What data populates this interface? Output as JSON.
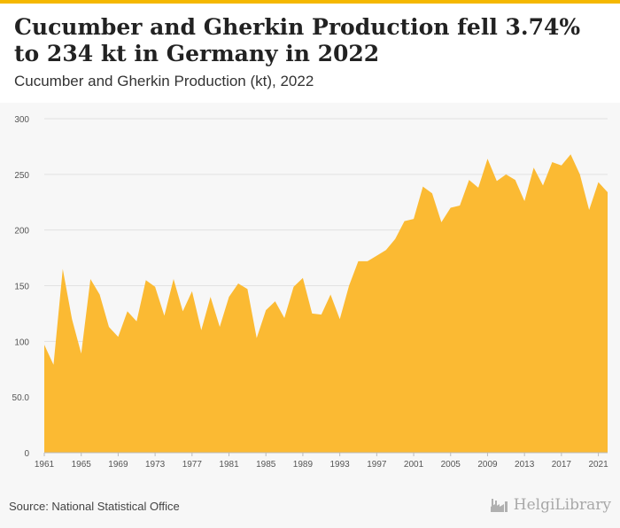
{
  "header": {
    "title": "Cucumber and Gherkin Production fell 3.74% to 234 kt in Germany in 2022",
    "subtitle": "Cucumber and Gherkin Production (kt), 2022"
  },
  "footer": {
    "source": "Source: National Statistical Office",
    "brand": "HelgiLibrary"
  },
  "colors": {
    "accent": "#f5b800",
    "area": "#fbba33"
  },
  "icons": {
    "brand": "factory-icon"
  },
  "chart_data": {
    "type": "area",
    "title": "Cucumber and Gherkin Production (kt), 2022",
    "xlabel": "",
    "ylabel": "",
    "ylim": [
      0,
      300
    ],
    "yticks": [
      0,
      50,
      100,
      150,
      200,
      250,
      300
    ],
    "ytick_labels": [
      "0",
      "50.0",
      "100",
      "150",
      "200",
      "250",
      "300"
    ],
    "xticks": [
      1961,
      1965,
      1969,
      1973,
      1977,
      1981,
      1985,
      1989,
      1993,
      1997,
      2001,
      2005,
      2009,
      2013,
      2017,
      2021
    ],
    "grid": true,
    "x": [
      1961,
      1962,
      1963,
      1964,
      1965,
      1966,
      1967,
      1968,
      1969,
      1970,
      1971,
      1972,
      1973,
      1974,
      1975,
      1976,
      1977,
      1978,
      1979,
      1980,
      1981,
      1982,
      1983,
      1984,
      1985,
      1986,
      1987,
      1988,
      1989,
      1990,
      1991,
      1992,
      1993,
      1994,
      1995,
      1996,
      1997,
      1998,
      1999,
      2000,
      2001,
      2002,
      2003,
      2004,
      2005,
      2006,
      2007,
      2008,
      2009,
      2010,
      2011,
      2012,
      2013,
      2014,
      2015,
      2016,
      2017,
      2018,
      2019,
      2020,
      2021,
      2022
    ],
    "values": [
      97,
      79,
      165,
      120,
      89,
      156,
      142,
      113,
      104,
      127,
      118,
      155,
      149,
      123,
      156,
      127,
      145,
      110,
      140,
      113,
      140,
      152,
      147,
      103,
      128,
      136,
      121,
      149,
      157,
      125,
      124,
      142,
      120,
      150,
      172,
      172,
      177,
      182,
      192,
      208,
      210,
      239,
      233,
      207,
      220,
      222,
      245,
      238,
      264,
      244,
      250,
      245,
      226,
      256,
      240,
      261,
      258,
      268,
      250,
      218,
      243,
      234
    ]
  }
}
